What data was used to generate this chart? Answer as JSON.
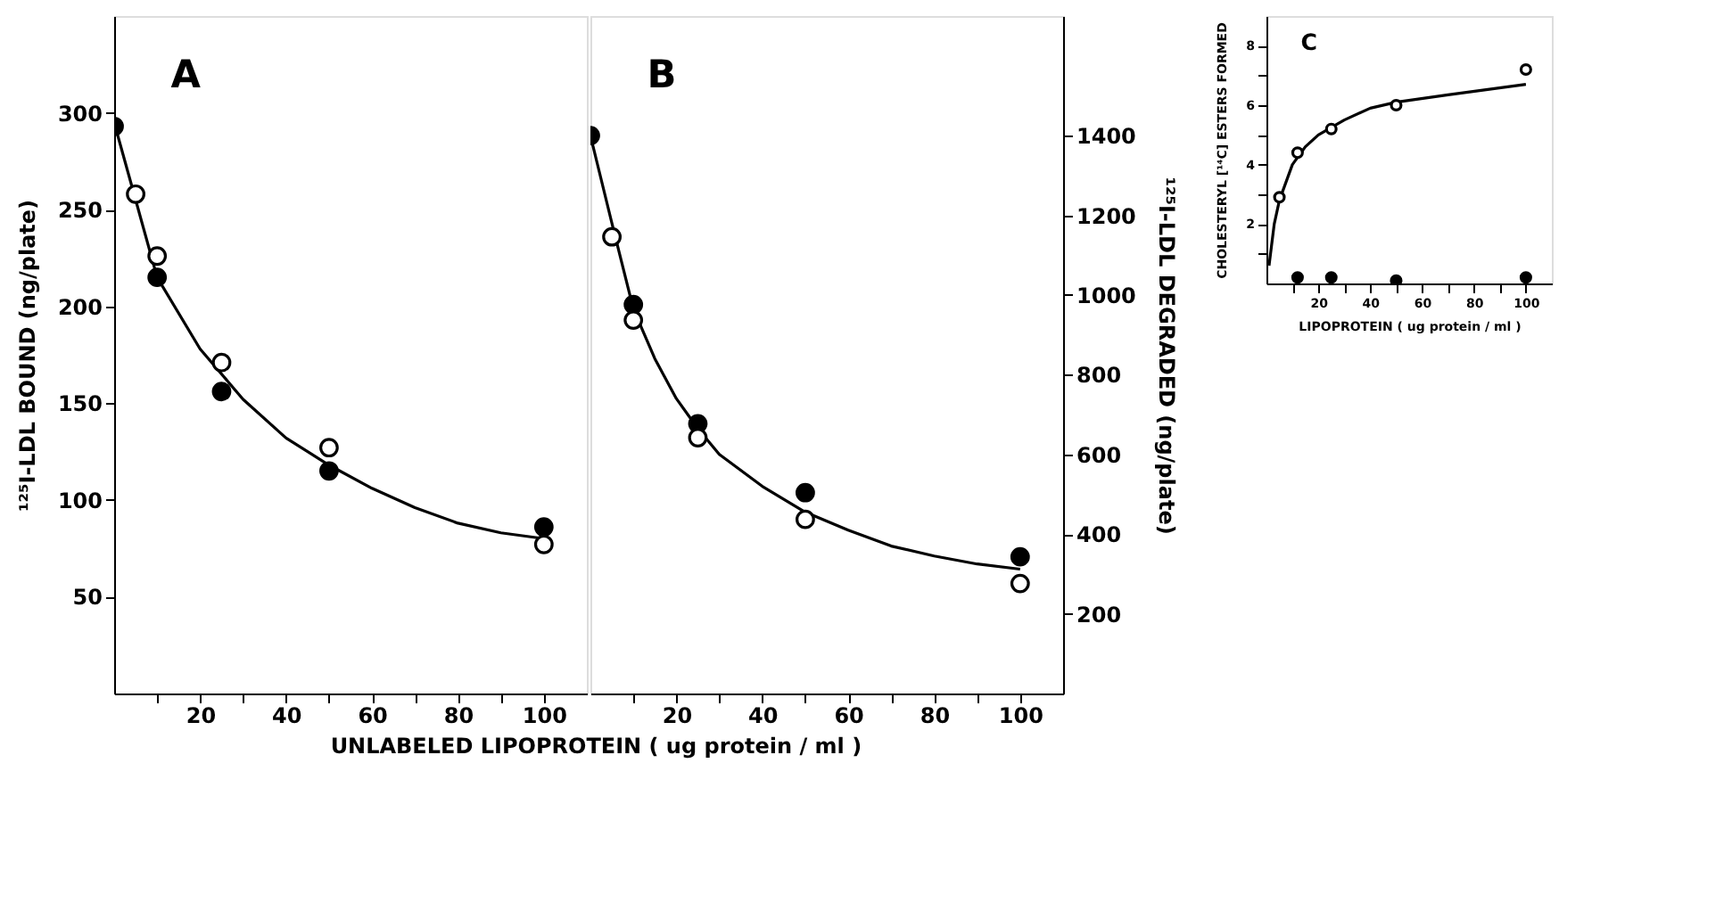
{
  "chart_data": [
    {
      "type": "scatter",
      "annotations": [
        "A"
      ],
      "xlabel": "UNLABELED LIPOPROTEIN  ( ug protein / ml )",
      "ylabel": "¹²⁵I-LDL BOUND (ng/plate)",
      "xlim": [
        0,
        110
      ],
      "xticks": [
        {
          "value": 10,
          "label": null
        },
        20,
        {
          "value": 30,
          "label": null
        },
        40,
        {
          "value": 50,
          "label": null
        },
        60,
        {
          "value": 70,
          "label": null
        },
        80,
        {
          "value": 90,
          "label": null
        },
        100
      ],
      "ylim": [
        0,
        350
      ],
      "yticks": [
        50,
        100,
        150,
        200,
        250,
        300
      ],
      "grid": false,
      "marker": "circle",
      "series": [
        {
          "type": "line",
          "marker": "none",
          "line_style": "solid",
          "color": "#000000",
          "x": [
            0,
            5,
            10,
            20,
            30,
            40,
            50,
            60,
            70,
            80,
            90,
            100
          ],
          "values": [
            295,
            255,
            215,
            178,
            152,
            132,
            118,
            106,
            96,
            88,
            83,
            80
          ]
        },
        {
          "color": "#000000",
          "x": [
            0,
            10,
            25,
            50,
            100
          ],
          "values": [
            293,
            215,
            156,
            115,
            86
          ]
        },
        {
          "color": "#ffffff",
          "x": [
            5,
            10,
            25,
            50,
            100
          ],
          "values": [
            258,
            226,
            171,
            127,
            77
          ]
        }
      ]
    },
    {
      "type": "scatter",
      "annotations": [
        "B"
      ],
      "y2label": "¹²⁵I-LDL DEGRADED (ng/plate)",
      "xlim": [
        0,
        110
      ],
      "xticks": [
        {
          "value": 10,
          "label": null
        },
        20,
        {
          "value": 30,
          "label": null
        },
        40,
        {
          "value": 50,
          "label": null
        },
        60,
        {
          "value": 70,
          "label": null
        },
        80,
        {
          "value": 90,
          "label": null
        },
        100
      ],
      "y2lim": [
        0,
        1700
      ],
      "y2ticks": [
        200,
        400,
        600,
        800,
        1000,
        1200,
        1400
      ],
      "grid": false,
      "marker": "circle",
      "series": [
        {
          "type": "line",
          "marker": "none",
          "line_style": "solid",
          "axis": "y2",
          "color": "#000000",
          "x": [
            0,
            5,
            10,
            15,
            20,
            25,
            30,
            40,
            50,
            60,
            70,
            80,
            90,
            100
          ],
          "values": [
            1400,
            1180,
            965,
            840,
            740,
            665,
            600,
            520,
            455,
            410,
            370,
            345,
            325,
            312
          ]
        },
        {
          "axis": "y2",
          "color": "#000000",
          "x": [
            0,
            10,
            25,
            50,
            100
          ],
          "values": [
            1400,
            976,
            677,
            504,
            343
          ]
        },
        {
          "axis": "y2",
          "color": "#ffffff",
          "x": [
            5,
            10,
            25,
            50,
            100
          ],
          "values": [
            1146,
            937,
            642,
            437,
            276
          ]
        }
      ]
    },
    {
      "type": "scatter",
      "annotations": [
        "C"
      ],
      "xlabel": "LIPOPROTEIN  ( ug protein / ml )",
      "ylabel": "CHOLESTERYL [¹⁴C] ESTERS FORMED",
      "xlim": [
        0,
        110
      ],
      "xticks": [
        {
          "value": 10,
          "label": null
        },
        20,
        {
          "value": 30,
          "label": null
        },
        40,
        {
          "value": 50,
          "label": null
        },
        60,
        {
          "value": 70,
          "label": null
        },
        80,
        {
          "value": 90,
          "label": null
        },
        100
      ],
      "ylim": [
        0,
        9
      ],
      "yticks": [
        {
          "value": 1,
          "label": null
        },
        2,
        {
          "value": 3,
          "label": null
        },
        4,
        {
          "value": 5,
          "label": null
        },
        6,
        {
          "value": 7,
          "label": null
        },
        8
      ],
      "grid": false,
      "marker": "circle",
      "series": [
        {
          "type": "line",
          "marker": "none",
          "line_style": "solid",
          "color": "#000000",
          "x": [
            1,
            3,
            5,
            10,
            15,
            20,
            30,
            40,
            50,
            70,
            100
          ],
          "values": [
            0.6,
            2.0,
            2.8,
            4.0,
            4.6,
            5.0,
            5.5,
            5.9,
            6.1,
            6.35,
            6.7
          ]
        },
        {
          "color": "#ffffff",
          "x": [
            5,
            12,
            25,
            50,
            100
          ],
          "values": [
            2.9,
            4.4,
            5.2,
            6.0,
            7.2
          ]
        },
        {
          "color": "#000000",
          "x": [
            12,
            25,
            50,
            100
          ],
          "values": [
            0.2,
            0.2,
            0.1,
            0.2
          ]
        }
      ]
    }
  ]
}
